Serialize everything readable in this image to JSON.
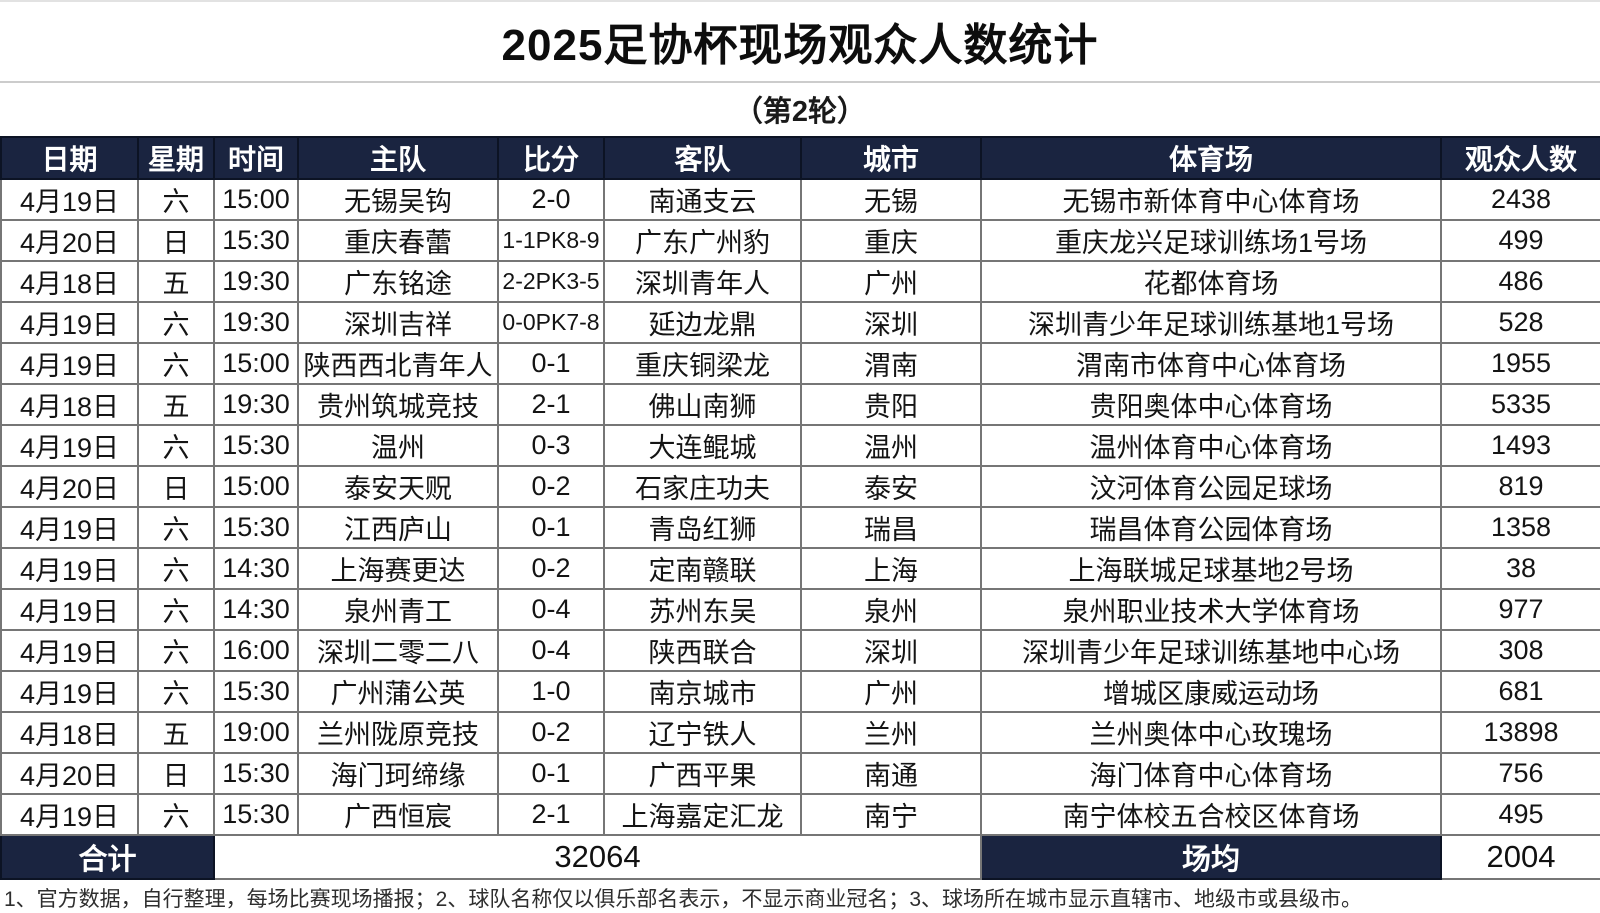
{
  "title": "2025足协杯现场观众人数统计",
  "subtitle": "（第2轮）",
  "colors": {
    "header_bg": "#1a2440",
    "header_text": "#ffffff",
    "grid_line": "#767676",
    "body_bg": "#ffffff"
  },
  "table": {
    "columns": [
      {
        "key": "date",
        "label": "日期"
      },
      {
        "key": "weekday",
        "label": "星期"
      },
      {
        "key": "time",
        "label": "时间"
      },
      {
        "key": "home",
        "label": "主队"
      },
      {
        "key": "score",
        "label": "比分"
      },
      {
        "key": "away",
        "label": "客队"
      },
      {
        "key": "city",
        "label": "城市"
      },
      {
        "key": "stadium",
        "label": "体育场"
      },
      {
        "key": "attendance",
        "label": "观众人数"
      }
    ],
    "rows": [
      [
        "4月19日",
        "六",
        "15:00",
        "无锡吴钩",
        "2-0",
        "南通支云",
        "无锡",
        "无锡市新体育中心体育场",
        "2438"
      ],
      [
        "4月20日",
        "日",
        "15:30",
        "重庆春蕾",
        "1-1PK8-9",
        "广东广州豹",
        "重庆",
        "重庆龙兴足球训练场1号场",
        "499"
      ],
      [
        "4月18日",
        "五",
        "19:30",
        "广东铭途",
        "2-2PK3-5",
        "深圳青年人",
        "广州",
        "花都体育场",
        "486"
      ],
      [
        "4月19日",
        "六",
        "19:30",
        "深圳吉祥",
        "0-0PK7-8",
        "延边龙鼎",
        "深圳",
        "深圳青少年足球训练基地1号场",
        "528"
      ],
      [
        "4月19日",
        "六",
        "15:00",
        "陕西西北青年人",
        "0-1",
        "重庆铜梁龙",
        "渭南",
        "渭南市体育中心体育场",
        "1955"
      ],
      [
        "4月18日",
        "五",
        "19:30",
        "贵州筑城竞技",
        "2-1",
        "佛山南狮",
        "贵阳",
        "贵阳奥体中心体育场",
        "5335"
      ],
      [
        "4月19日",
        "六",
        "15:30",
        "温州",
        "0-3",
        "大连鲲城",
        "温州",
        "温州体育中心体育场",
        "1493"
      ],
      [
        "4月20日",
        "日",
        "15:00",
        "泰安天贶",
        "0-2",
        "石家庄功夫",
        "泰安",
        "汶河体育公园足球场",
        "819"
      ],
      [
        "4月19日",
        "六",
        "15:30",
        "江西庐山",
        "0-1",
        "青岛红狮",
        "瑞昌",
        "瑞昌体育公园体育场",
        "1358"
      ],
      [
        "4月19日",
        "六",
        "14:30",
        "上海赛更达",
        "0-2",
        "定南赣联",
        "上海",
        "上海联城足球基地2号场",
        "38"
      ],
      [
        "4月19日",
        "六",
        "14:30",
        "泉州青工",
        "0-4",
        "苏州东吴",
        "泉州",
        "泉州职业技术大学体育场",
        "977"
      ],
      [
        "4月19日",
        "六",
        "16:00",
        "深圳二零二八",
        "0-4",
        "陕西联合",
        "深圳",
        "深圳青少年足球训练基地中心场",
        "308"
      ],
      [
        "4月19日",
        "六",
        "15:30",
        "广州蒲公英",
        "1-0",
        "南京城市",
        "广州",
        "增城区康威运动场",
        "681"
      ],
      [
        "4月18日",
        "五",
        "19:00",
        "兰州陇原竞技",
        "0-2",
        "辽宁铁人",
        "兰州",
        "兰州奥体中心玫瑰场",
        "13898"
      ],
      [
        "4月20日",
        "日",
        "15:30",
        "海门珂缔缘",
        "0-1",
        "广西平果",
        "南通",
        "海门体育中心体育场",
        "756"
      ],
      [
        "4月19日",
        "六",
        "15:30",
        "广西恒宸",
        "2-1",
        "上海嘉定汇龙",
        "南宁",
        "南宁体校五合校区体育场",
        "495"
      ]
    ],
    "footer": {
      "total_label": "合计",
      "total_value": "32064",
      "avg_label": "场均",
      "avg_value": "2004"
    }
  },
  "notes": "1、官方数据，自行整理，每场比赛现场播报；2、球队名称仅以俱乐部名表示，不显示商业冠名；3、球场所在城市显示直辖市、地级市或县级市。"
}
